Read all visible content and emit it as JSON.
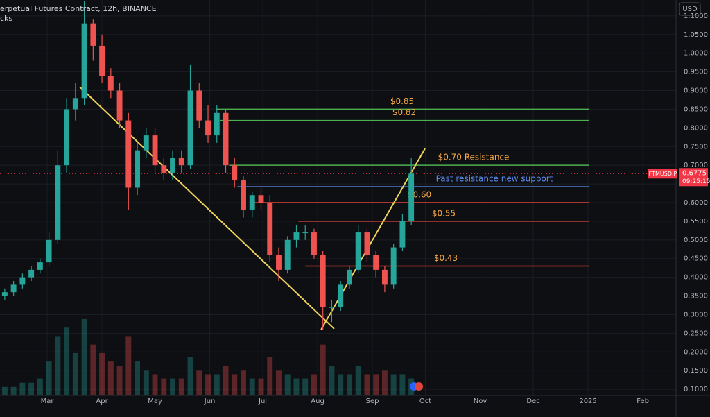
{
  "header": {
    "title": "erpetual Futures Contract, 12h, BINANCE",
    "subtitle": "cks",
    "currency_button": "USD"
  },
  "chart_data": {
    "type": "candlestick",
    "x": [
      36,
      41,
      46,
      51,
      56,
      61,
      66,
      71,
      76,
      81,
      86,
      91,
      96,
      101,
      106,
      111,
      116,
      121,
      126,
      131,
      136,
      141,
      146,
      151,
      156,
      161,
      166,
      171,
      176,
      181,
      186,
      191,
      196,
      201,
      206,
      211,
      216,
      221,
      226,
      231,
      236,
      241,
      246,
      251,
      256,
      261,
      266
    ],
    "open": [
      0.35,
      0.36,
      0.38,
      0.4,
      0.42,
      0.44,
      0.5,
      0.7,
      0.85,
      0.88,
      1.08,
      1.02,
      0.94,
      0.9,
      0.82,
      0.64,
      0.74,
      0.78,
      0.7,
      0.68,
      0.72,
      0.7,
      0.9,
      0.82,
      0.78,
      0.84,
      0.7,
      0.66,
      0.58,
      0.62,
      0.6,
      0.46,
      0.42,
      0.5,
      0.52,
      0.52,
      0.46,
      0.32,
      0.32,
      0.38,
      0.42,
      0.52,
      0.46,
      0.42,
      0.38,
      0.48,
      0.55
    ],
    "high": [
      0.37,
      0.39,
      0.41,
      0.43,
      0.45,
      0.52,
      0.74,
      0.88,
      0.92,
      1.14,
      1.09,
      1.05,
      0.96,
      0.92,
      0.84,
      0.76,
      0.8,
      0.8,
      0.72,
      0.74,
      0.74,
      0.97,
      0.92,
      0.86,
      0.86,
      0.85,
      0.72,
      0.67,
      0.63,
      0.64,
      0.62,
      0.48,
      0.51,
      0.54,
      0.54,
      0.53,
      0.47,
      0.34,
      0.39,
      0.43,
      0.54,
      0.53,
      0.47,
      0.43,
      0.49,
      0.57,
      0.72
    ],
    "low": [
      0.34,
      0.35,
      0.37,
      0.39,
      0.41,
      0.43,
      0.49,
      0.68,
      0.82,
      0.86,
      0.98,
      0.92,
      0.88,
      0.8,
      0.58,
      0.62,
      0.72,
      0.68,
      0.66,
      0.66,
      0.68,
      0.69,
      0.8,
      0.76,
      0.76,
      0.68,
      0.64,
      0.56,
      0.56,
      0.58,
      0.44,
      0.39,
      0.41,
      0.48,
      0.5,
      0.45,
      0.26,
      0.28,
      0.31,
      0.37,
      0.41,
      0.44,
      0.4,
      0.36,
      0.37,
      0.47,
      0.54
    ],
    "close": [
      0.36,
      0.38,
      0.4,
      0.42,
      0.44,
      0.5,
      0.7,
      0.85,
      0.88,
      1.08,
      1.02,
      0.94,
      0.9,
      0.82,
      0.64,
      0.74,
      0.78,
      0.7,
      0.68,
      0.72,
      0.7,
      0.9,
      0.82,
      0.78,
      0.84,
      0.7,
      0.66,
      0.58,
      0.62,
      0.6,
      0.46,
      0.42,
      0.5,
      0.52,
      0.52,
      0.46,
      0.32,
      0.32,
      0.38,
      0.42,
      0.52,
      0.46,
      0.42,
      0.38,
      0.48,
      0.55,
      0.6775
    ],
    "volume": [
      2,
      2,
      3,
      3,
      4,
      8,
      14,
      16,
      10,
      18,
      12,
      10,
      8,
      7,
      14,
      8,
      6,
      5,
      4,
      4,
      4,
      9,
      6,
      5,
      5,
      7,
      5,
      6,
      4,
      4,
      9,
      6,
      5,
      4,
      4,
      5,
      12,
      7,
      5,
      5,
      7,
      5,
      5,
      6,
      5,
      5,
      4
    ],
    "up_color": "#26a69a",
    "down_color": "#ef5350",
    "xlim": [
      33.3,
      415.8
    ],
    "xticks": [
      {
        "value": 60,
        "label": "Mar"
      },
      {
        "value": 91,
        "label": "Apr"
      },
      {
        "value": 121,
        "label": "May"
      },
      {
        "value": 152,
        "label": "Jun"
      },
      {
        "value": 182,
        "label": "Jul"
      },
      {
        "value": 213,
        "label": "Aug"
      },
      {
        "value": 244,
        "label": "Sep"
      },
      {
        "value": 274,
        "label": "Oct"
      },
      {
        "value": 305,
        "label": "Nov"
      },
      {
        "value": 335,
        "label": "Dec"
      },
      {
        "value": 366,
        "label": "2025"
      },
      {
        "value": 397,
        "label": "Feb"
      }
    ],
    "ylim": [
      0.0835,
      1.1425
    ],
    "yticks": [
      {
        "value": 0.1,
        "label": "0.1000"
      },
      {
        "value": 0.15,
        "label": "0.1500"
      },
      {
        "value": 0.2,
        "label": "0.2000"
      },
      {
        "value": 0.25,
        "label": "0.2500"
      },
      {
        "value": 0.3,
        "label": "0.3000"
      },
      {
        "value": 0.35,
        "label": "0.3500"
      },
      {
        "value": 0.4,
        "label": "0.4000"
      },
      {
        "value": 0.45,
        "label": "0.4500"
      },
      {
        "value": 0.5,
        "label": "0.5000"
      },
      {
        "value": 0.55,
        "label": "0.5500"
      },
      {
        "value": 0.6,
        "label": "0.6000"
      },
      {
        "value": 0.65,
        "label": "0.6500"
      },
      {
        "value": 0.7,
        "label": "0.7000"
      },
      {
        "value": 0.75,
        "label": "0.7500"
      },
      {
        "value": 0.8,
        "label": "0.8000"
      },
      {
        "value": 0.85,
        "label": "0.8500"
      },
      {
        "value": 0.9,
        "label": "0.9000"
      },
      {
        "value": 0.95,
        "label": "0.9500"
      },
      {
        "value": 1.0,
        "label": "1.0000"
      },
      {
        "value": 1.05,
        "label": "1.0500"
      },
      {
        "value": 1.1,
        "label": "1.1000"
      }
    ],
    "grid": true,
    "price_tag": {
      "symbol": "FTMUSD.P",
      "price": 0.6775,
      "countdown": "09:25:15",
      "color": "#f23645"
    },
    "levels": [
      {
        "value": 0.85,
        "label": "$0.85",
        "x_start": 155.7,
        "x_end": 366.8,
        "color": "#4caf50",
        "label_color": "#f5a742"
      },
      {
        "value": 0.82,
        "label": "$0.82",
        "x_start": 158,
        "x_end": 366.8,
        "color": "#4caf50",
        "label_color": "#f5a742"
      },
      {
        "value": 0.7,
        "label": "$0.70 Resistance",
        "x_start": 162.9,
        "x_end": 366.8,
        "color": "#4caf50",
        "label_color": "#f5a742"
      },
      {
        "value": 0.6425,
        "label": "Past resistance new support",
        "x_start": 167.6,
        "x_end": 366.8,
        "color": "#5b8def",
        "label_color": "#5b8def"
      },
      {
        "value": 0.6,
        "label": "$0.60",
        "x_start": 175.4,
        "x_end": 366.8,
        "color": "#e0453a",
        "label_color": "#f5a742"
      },
      {
        "value": 0.55,
        "label": "$0.55",
        "x_start": 202.1,
        "x_end": 366.8,
        "color": "#e0453a",
        "label_color": "#f5a742"
      },
      {
        "value": 0.43,
        "label": "$0.43",
        "x_start": 206,
        "x_end": 366.8,
        "color": "#e0453a",
        "label_color": "#f5a742"
      }
    ],
    "trendlines": [
      {
        "x": [
          78.4,
          222.4
        ],
        "y": [
          0.91,
          0.262
        ],
        "color": "#f0d35a"
      },
      {
        "x": [
          215,
          273.8
        ],
        "y": [
          0.26,
          0.745
        ],
        "color": "#f0d35a"
      }
    ]
  }
}
